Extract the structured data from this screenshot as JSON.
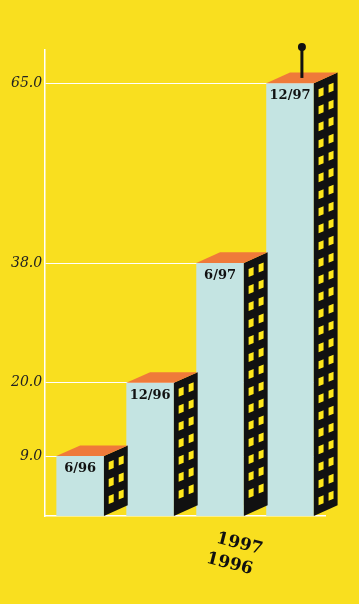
{
  "chart_data": {
    "type": "bar",
    "categories": [
      "6/96",
      "12/96",
      "6/97",
      "12/97"
    ],
    "values": [
      9,
      20,
      38,
      65
    ],
    "color": "#c4e4e2",
    "ylim": [
      0,
      70
    ],
    "yticks": [
      {
        "value": 9,
        "label": "9.0"
      },
      {
        "value": 20,
        "label": "20.0"
      },
      {
        "value": 38,
        "label": "38.0"
      },
      {
        "value": 65,
        "label": "65.0"
      }
    ],
    "grid": true,
    "tick_labels": "y",
    "annotations": [
      "1997",
      "1996"
    ]
  }
}
